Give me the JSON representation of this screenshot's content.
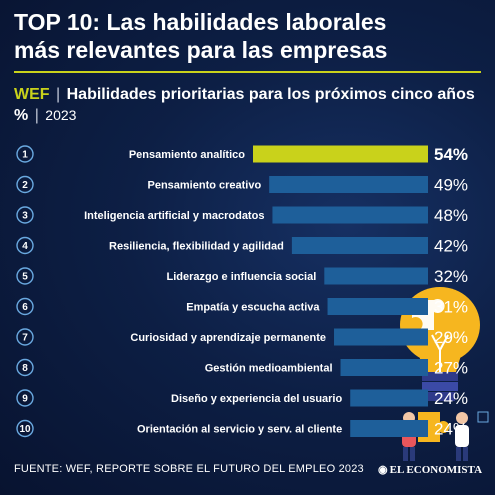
{
  "header": {
    "title_line1": "TOP 10: Las habilidades laborales",
    "title_line2": "más relevantes para las empresas",
    "source_tag": "WEF",
    "separator": "|",
    "subtitle": "Habilidades prioritarias para los próximos cinco años %",
    "year": "2023"
  },
  "footer": {
    "source": "FUENTE: WEF, REPORTE SOBRE EL FUTURO DEL EMPLEO 2023",
    "brand": "EL ECONOMISTA",
    "brand_mark": "◉"
  },
  "colors": {
    "background": "#0b1a3a",
    "bar": "#1e5f9a",
    "bar_highlight": "#c9d21b",
    "accent": "#c9d21b"
  },
  "illustration": {
    "icons": [
      "lightbulb-icon",
      "puzzle-piece-icon",
      "person-icon"
    ]
  },
  "chart_data": {
    "type": "bar",
    "orientation": "horizontal",
    "title": "Habilidades prioritarias para los próximos cinco años %",
    "xlim": [
      0,
      54
    ],
    "ranks": [
      "1",
      "2",
      "3",
      "4",
      "5",
      "6",
      "7",
      "8",
      "9",
      "10"
    ],
    "categories": [
      "Pensamiento analítico",
      "Pensamiento creativo",
      "Inteligencia artificial y macrodatos",
      "Resiliencia, flexibilidad y agilidad",
      "Liderazgo e influencia social",
      "Empatía y escucha activa",
      "Curiosidad y aprendizaje permanente",
      "Gestión medioambiental",
      "Diseño y experiencia del usuario",
      "Orientación al servicio y serv. al cliente"
    ],
    "values": [
      54,
      49,
      48,
      42,
      32,
      31,
      29,
      27,
      24,
      24
    ],
    "value_labels": [
      "54%",
      "49%",
      "48%",
      "42%",
      "32%",
      "31%",
      "29%",
      "27%",
      "24%",
      "24%"
    ],
    "highlight_index": 0
  }
}
